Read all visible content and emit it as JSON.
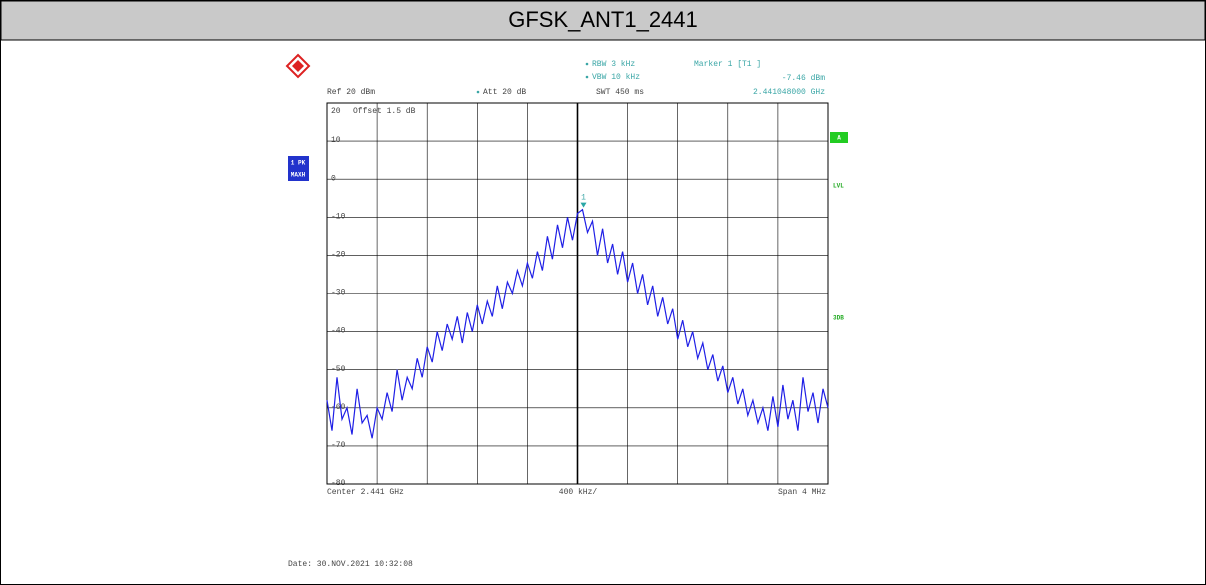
{
  "header": {
    "title": "GFSK_ANT1_2441"
  },
  "settings": {
    "rbw": "RBW 3 kHz",
    "vbw": "VBW 10 kHz",
    "swt": "SWT 450 ms",
    "ref": "Ref 20 dBm",
    "att": "Att 20 dB",
    "offset": "Offset 1.5 dB",
    "trace_label": [
      "1 PK",
      "MAXH"
    ],
    "side_labels": [
      "A",
      "LVL",
      "3DB"
    ],
    "date": "Date: 30.NOV.2021 10:32:08"
  },
  "chart_data": {
    "type": "line",
    "color": "#1f1fe6",
    "xlabels": {
      "center": "Center 2.441 GHz",
      "div": "400 kHz/",
      "span": "Span 4 MHz"
    },
    "xlim": [
      2.439,
      2.443
    ],
    "ylim": [
      -80,
      20
    ],
    "yticks": [
      20,
      10,
      0,
      -10,
      -20,
      -30,
      -40,
      -50,
      -60,
      -70,
      -80
    ],
    "grid": true,
    "marker": {
      "name": "Marker 1 [T1 ]",
      "tag": "1",
      "x": 2.441048,
      "value": -7.46,
      "value_label": "-7.46 dBm",
      "x_label": "2.441048000 GHz"
    },
    "values": [
      -58,
      -66,
      -52,
      -63,
      -60,
      -67,
      -55,
      -64,
      -62,
      -68,
      -60,
      -63,
      -56,
      -61,
      -50,
      -58,
      -52,
      -55,
      -47,
      -52,
      -44,
      -48,
      -40,
      -45,
      -38,
      -42,
      -36,
      -43,
      -35,
      -40,
      -33,
      -38,
      -32,
      -36,
      -28,
      -34,
      -27,
      -30,
      -24,
      -28,
      -22,
      -26,
      -19,
      -24,
      -15,
      -21,
      -12,
      -18,
      -10,
      -16,
      -9,
      -8,
      -14,
      -11,
      -20,
      -13,
      -22,
      -17,
      -25,
      -19,
      -27,
      -22,
      -30,
      -25,
      -33,
      -28,
      -36,
      -31,
      -38,
      -34,
      -42,
      -37,
      -44,
      -40,
      -47,
      -43,
      -50,
      -46,
      -53,
      -49,
      -56,
      -52,
      -59,
      -55,
      -62,
      -58,
      -64,
      -60,
      -66,
      -57,
      -65,
      -54,
      -63,
      -58,
      -66,
      -52,
      -61,
      -56,
      -64,
      -55,
      -60
    ]
  }
}
